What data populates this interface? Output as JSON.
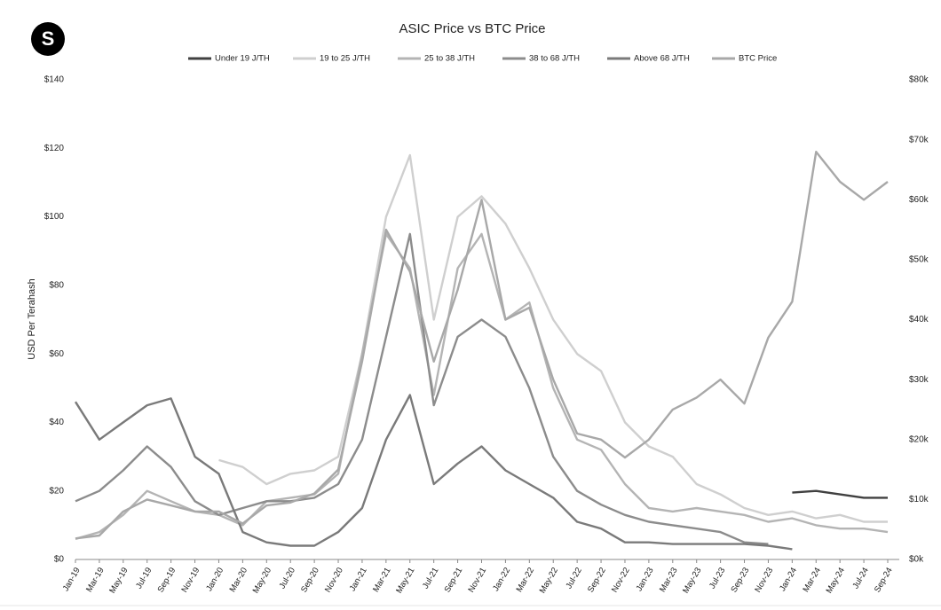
{
  "logo": "S",
  "chart_data": {
    "type": "line",
    "title": "ASIC Price vs BTC Price",
    "y_label": "USD Per Terahash",
    "categories": [
      "Jan-19",
      "Mar-19",
      "May-19",
      "Jul-19",
      "Sep-19",
      "Nov-19",
      "Jan-20",
      "Mar-20",
      "May-20",
      "Jul-20",
      "Sep-20",
      "Nov-20",
      "Jan-21",
      "Mar-21",
      "May-21",
      "Jul-21",
      "Sep-21",
      "Nov-21",
      "Jan-22",
      "Mar-22",
      "May-22",
      "Jul-22",
      "Sep-22",
      "Nov-22",
      "Jan-23",
      "Mar-23",
      "May-23",
      "Jul-23",
      "Sep-23",
      "Nov-23",
      "Jan-24",
      "Mar-24",
      "May-24",
      "Jul-24",
      "Sep-24"
    ],
    "series": [
      {
        "name": "Under 19 J/TH",
        "color": "#404040",
        "values": [
          null,
          null,
          null,
          null,
          null,
          null,
          null,
          null,
          null,
          null,
          null,
          null,
          null,
          null,
          null,
          null,
          null,
          null,
          null,
          null,
          null,
          null,
          null,
          null,
          null,
          null,
          null,
          null,
          null,
          null,
          19.5,
          20,
          19,
          18,
          18
        ]
      },
      {
        "name": "19 to 25 J/TH",
        "color": "#cfcfcf",
        "values": [
          null,
          null,
          null,
          null,
          null,
          null,
          29,
          27,
          22,
          25,
          26,
          30,
          60,
          100,
          118,
          70,
          100,
          106,
          98,
          85,
          70,
          60,
          55,
          40,
          33,
          30,
          22,
          19,
          15,
          13,
          14,
          12,
          13,
          11,
          11
        ]
      },
      {
        "name": "25 to 38 J/TH",
        "color": "#b4b4b4",
        "values": [
          6,
          8,
          13,
          20,
          17,
          14,
          13,
          10,
          17,
          18,
          19,
          25,
          60,
          95,
          85,
          48,
          85,
          95,
          70,
          75,
          50,
          35,
          32,
          22,
          15,
          14,
          15,
          14,
          13,
          11,
          12,
          10,
          9,
          9,
          8
        ]
      },
      {
        "name": "38 to 68 J/TH",
        "color": "#8c8c8c",
        "values": [
          17,
          20,
          26,
          33,
          27,
          17,
          13,
          15,
          17,
          17,
          18,
          22,
          35,
          65,
          95,
          45,
          65,
          70,
          65,
          50,
          30,
          20,
          16,
          13,
          11,
          10,
          9,
          8,
          5,
          4.5,
          null,
          null,
          null,
          null,
          null
        ]
      },
      {
        "name": "Above 68 J/TH",
        "color": "#7a7a7a",
        "values": [
          46,
          35,
          40,
          45,
          47,
          30,
          25,
          8,
          5,
          4,
          4,
          8,
          15,
          35,
          48,
          22,
          28,
          33,
          26,
          22,
          18,
          11,
          9,
          5,
          5,
          4.5,
          4.5,
          4.5,
          4.5,
          4,
          3,
          null,
          null,
          null,
          null
        ]
      },
      {
        "name": "BTC Price",
        "color": "#a8a8a8",
        "axis": "y2",
        "values": [
          3500,
          4000,
          8000,
          10000,
          9000,
          8000,
          8000,
          6000,
          9000,
          9500,
          11000,
          15000,
          33000,
          55000,
          48000,
          33000,
          45000,
          60000,
          40000,
          42000,
          30000,
          21000,
          20000,
          17000,
          20000,
          25000,
          27000,
          30000,
          26000,
          37000,
          43000,
          68000,
          63000,
          60000,
          63000
        ]
      }
    ],
    "ylim": [
      0,
      140
    ],
    "yticks": [
      {
        "value": 0,
        "label": "$0"
      },
      {
        "value": 20,
        "label": "$20"
      },
      {
        "value": 40,
        "label": "$40"
      },
      {
        "value": 60,
        "label": "$60"
      },
      {
        "value": 80,
        "label": "$80"
      },
      {
        "value": 100,
        "label": "$100"
      },
      {
        "value": 120,
        "label": "$120"
      },
      {
        "value": 140,
        "label": "$140"
      }
    ],
    "y2lim": [
      0,
      80000
    ],
    "y2ticks": [
      {
        "value": 0,
        "label": "$0k"
      },
      {
        "value": 10000,
        "label": "$10k"
      },
      {
        "value": 20000,
        "label": "$20k"
      },
      {
        "value": 30000,
        "label": "$30k"
      },
      {
        "value": 40000,
        "label": "$40k"
      },
      {
        "value": 50000,
        "label": "$50k"
      },
      {
        "value": 60000,
        "label": "$60k"
      },
      {
        "value": 70000,
        "label": "$70k"
      },
      {
        "value": 80000,
        "label": "$80k"
      }
    ],
    "grid": false,
    "legend": "top"
  }
}
